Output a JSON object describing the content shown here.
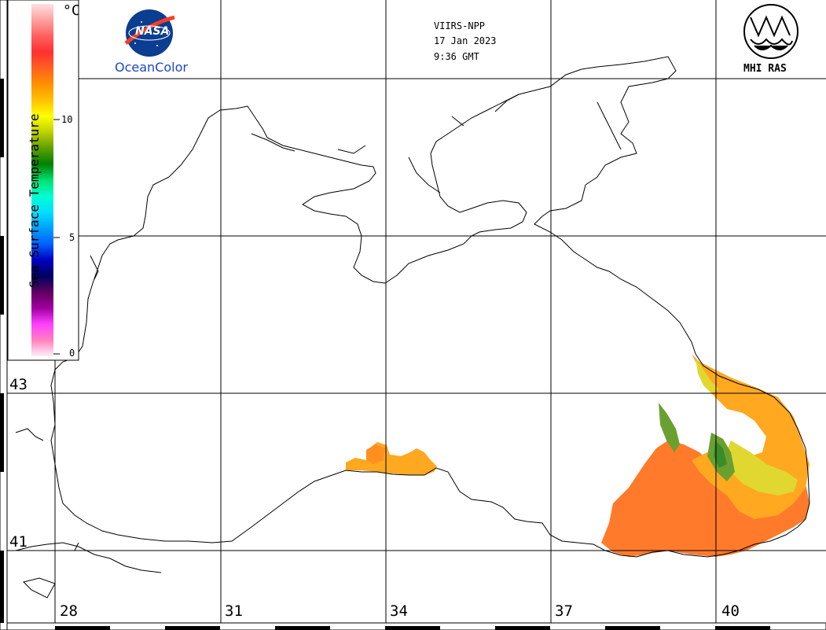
{
  "header": {
    "sensor": "VIIRS-NPP",
    "date": "17 Jan 2023",
    "time": "9:36 GMT"
  },
  "logos": {
    "nasa_text": "NASA",
    "oceancolor": "OceanColor",
    "mhi": "MHI RAS"
  },
  "colorbar": {
    "title": "Sea Surface Temperature",
    "unit": "°C",
    "ticks": [
      "10",
      "5",
      "0"
    ],
    "stops": [
      "#fff0f8",
      "#ff80c0",
      "#ff40ff",
      "#a000a0",
      "#600060",
      "#000060",
      "#0000c0",
      "#0060ff",
      "#00a0ff",
      "#00e0ff",
      "#00ffd0",
      "#00e070",
      "#008000",
      "#60a000",
      "#c0d000",
      "#ffff00",
      "#ffc000",
      "#ff9000",
      "#ff6020",
      "#ff3030",
      "#ff6060",
      "#ffa0a0",
      "#ffe0e0"
    ]
  },
  "grid": {
    "lat_labels": [
      "43",
      "41"
    ],
    "lon_labels": [
      "28",
      "31",
      "34",
      "37",
      "40"
    ]
  },
  "colors": {
    "land_line": "#000000",
    "grid": "#000000",
    "sst_warm": "#ff7a2a",
    "sst_mid": "#ffa820",
    "sst_cool": "#e0d830",
    "sst_cold": "#6aa030"
  }
}
